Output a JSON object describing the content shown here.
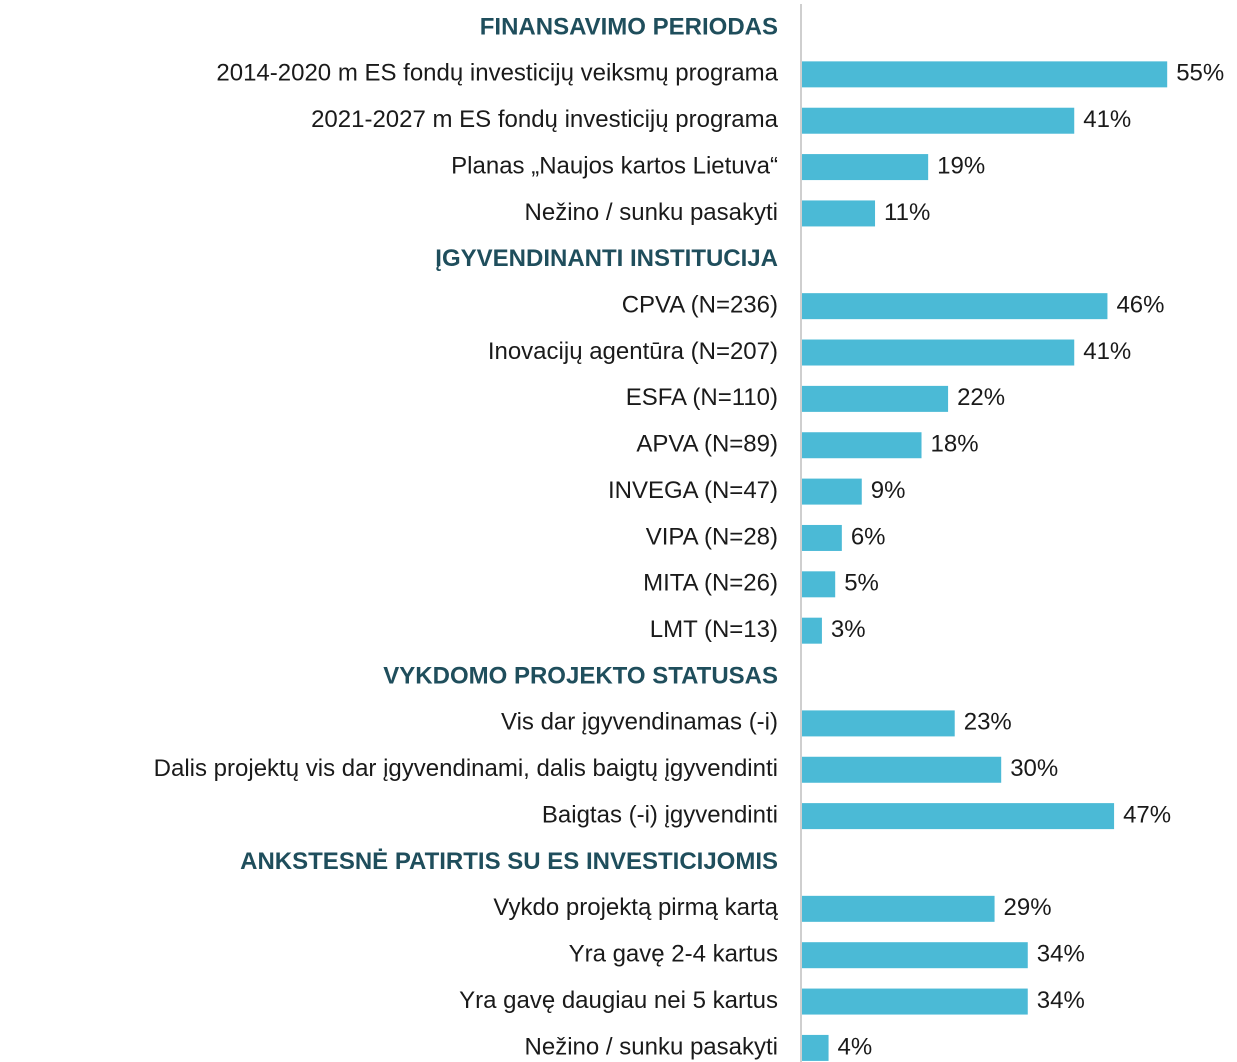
{
  "chart_data": {
    "type": "bar",
    "color": "#4bbad6",
    "header_color": "#1f4e5c",
    "groups": [
      {
        "title": "FINANSAVIMO PERIODAS",
        "categories": [
          "2014-2020 m  ES fondų investicijų veiksmų programa",
          "2021-2027 m  ES fondų investicijų programa",
          "Planas „Naujos kartos Lietuva“",
          "Nežino / sunku pasakyti"
        ],
        "values": [
          55,
          41,
          19,
          11
        ],
        "value_labels": [
          "55%",
          "41%",
          "19%",
          "11%"
        ]
      },
      {
        "title": "ĮGYVENDINANTI INSTITUCIJA",
        "categories": [
          "CPVA (N=236)",
          "Inovacijų agentūra (N=207)",
          "ESFA (N=110)",
          "APVA (N=89)",
          "INVEGA (N=47)",
          "VIPA (N=28)",
          "MITA (N=26)",
          "LMT (N=13)"
        ],
        "values": [
          46,
          41,
          22,
          18,
          9,
          6,
          5,
          3
        ],
        "value_labels": [
          "46%",
          "41%",
          "22%",
          "18%",
          "9%",
          "6%",
          "5%",
          "3%"
        ]
      },
      {
        "title": "VYKDOMO PROJEKTO STATUSAS",
        "categories": [
          "Vis dar įgyvendinamas (-i)",
          "Dalis projektų vis dar įgyvendinami, dalis baigtų įgyvendinti",
          "Baigtas (-i) įgyvendinti"
        ],
        "values": [
          23,
          30,
          47
        ],
        "value_labels": [
          "23%",
          "30%",
          "47%"
        ]
      },
      {
        "title": "ANKSTESNĖ PATIRTIS SU ES INVESTICIJOMIS",
        "categories": [
          "Vykdo projektą pirmą kartą",
          "Yra gavę 2-4 kartus",
          "Yra gavę daugiau nei 5 kartus",
          "Nežino / sunku pasakyti"
        ],
        "values": [
          29,
          34,
          34,
          4
        ],
        "value_labels": [
          "29%",
          "34%",
          "34%",
          "4%"
        ]
      }
    ]
  }
}
